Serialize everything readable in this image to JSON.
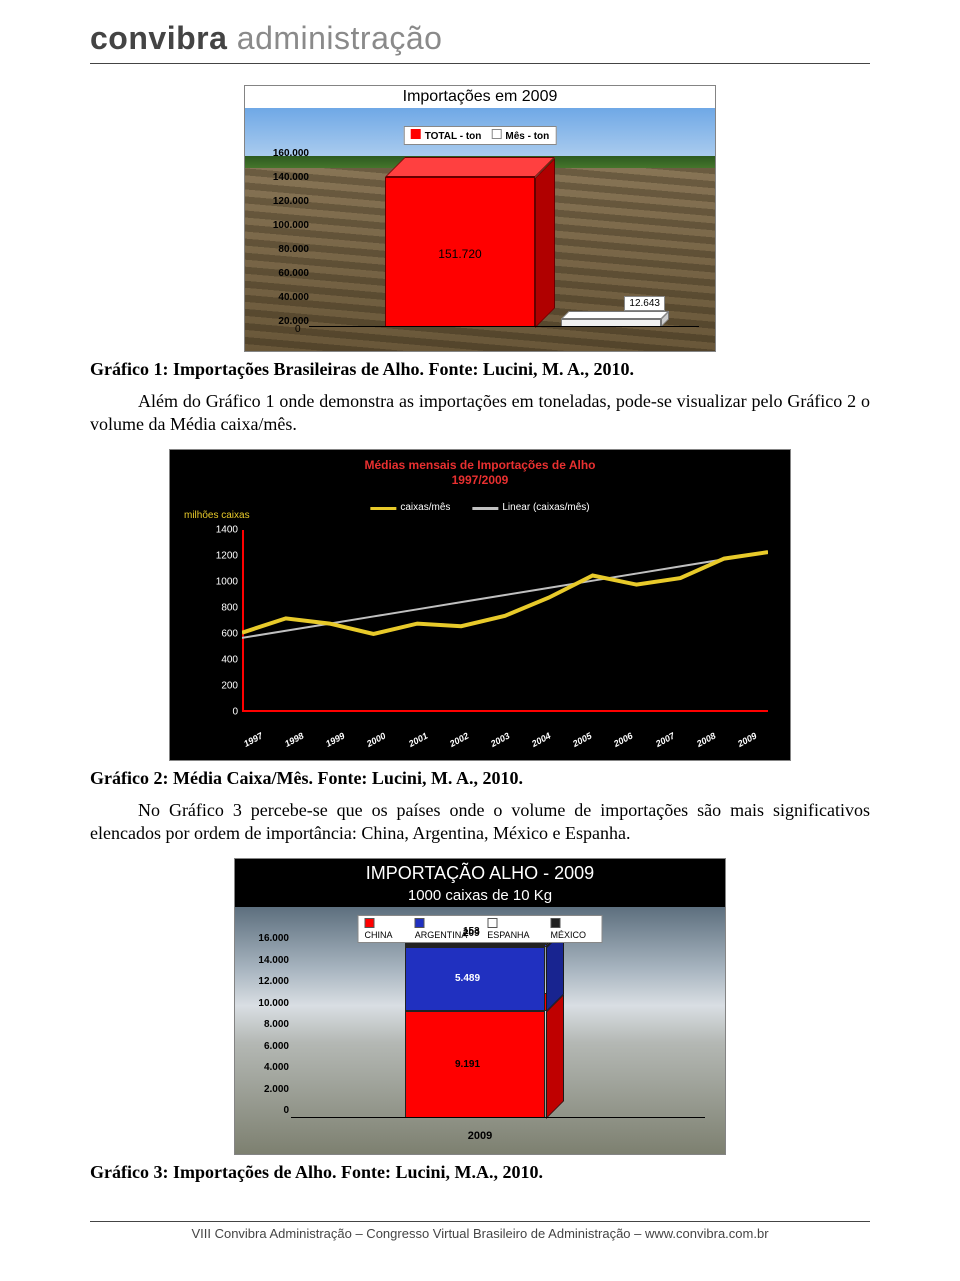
{
  "header": {
    "brand_bold": "convibra",
    "brand_light": "administração"
  },
  "figure1": {
    "title": "Importações em 2009",
    "legend": {
      "total": "TOTAL - ton",
      "mes": "Mês - ton",
      "total_color": "#ff0000",
      "mes_color": "#ffffff"
    },
    "yticks": [
      "160.000",
      "140.000",
      "120.000",
      "100.000",
      "80.000",
      "60.000",
      "40.000",
      "20.000"
    ],
    "zero": "0",
    "bar_value": "151.720",
    "slab_value": "12.643",
    "colors": {
      "bar": "#ff0000",
      "slab": "#f0f0f0"
    }
  },
  "caption1": "Gráfico 1: Importações Brasileiras de Alho. Fonte: Lucini, M. A., 2010.",
  "para1": "Além do Gráfico 1 onde demonstra as importações em toneladas, pode-se visualizar pelo Gráfico 2 o volume da Média caixa/mês.",
  "figure2": {
    "title_line1": "Médias mensais de Importações de Alho",
    "title_line2": "1997/2009",
    "ylabel": "milhões caixas",
    "legend": {
      "series1": "caixas/mês",
      "series2": "Linear (caixas/mês)",
      "c1": "#e8ca2a",
      "c2": "#c0c0c0"
    },
    "yticks": [
      "1400",
      "1200",
      "1000",
      "800",
      "600",
      "400",
      "200",
      "0"
    ],
    "ylim": [
      0,
      1400
    ],
    "xlabels": [
      "1997",
      "1998",
      "1999",
      "2000",
      "2001",
      "2002",
      "2003",
      "2004",
      "2005",
      "2006",
      "2007",
      "2008",
      "2009"
    ],
    "series_caixas": [
      610,
      720,
      680,
      600,
      680,
      660,
      740,
      880,
      1050,
      980,
      1030,
      1180,
      1230
    ],
    "series_linear": [
      570,
      625,
      680,
      735,
      790,
      845,
      900,
      955,
      1010,
      1065,
      1120,
      1175,
      1230
    ],
    "colors": {
      "bg": "#000000",
      "axis": "#ff0000",
      "line": "#e8ca2a",
      "trend": "#c0c0c0",
      "text": "#ffffff",
      "title": "#e83030"
    }
  },
  "caption2": "Gráfico 2: Média Caixa/Mês. Fonte: Lucini, M. A., 2010.",
  "para2": "No Gráfico 3 percebe-se que os países onde o volume de importações são mais significativos elencados por ordem de importância: China, Argentina, México e Espanha.",
  "figure3": {
    "title_line1": "IMPORTAÇÃO ALHO - 2009",
    "title_line2": "1000 caixas de 10 Kg",
    "legend": [
      {
        "label": "CHINA",
        "color": "#ff0000"
      },
      {
        "label": "ARGENTINA",
        "color": "#2030c0"
      },
      {
        "label": "ESPANHA",
        "color": "#ffffff"
      },
      {
        "label": "MÉXICO",
        "color": "#202020"
      }
    ],
    "yticks": [
      "16.000",
      "14.000",
      "12.000",
      "10.000",
      "8.000",
      "6.000",
      "4.000",
      "2.000",
      "0"
    ],
    "ylim": [
      0,
      16000
    ],
    "xlabel": "2009",
    "slices": [
      {
        "label": "153",
        "value": 153,
        "color": "#ffffff"
      },
      {
        "label": "209",
        "value": 209,
        "color": "#202020"
      },
      {
        "label": "5.489",
        "value": 5489,
        "color": "#2030c0"
      },
      {
        "label": "9.191",
        "value": 9191,
        "color": "#ff0000"
      }
    ]
  },
  "caption3": "Gráfico 3: Importações de Alho. Fonte: Lucini, M.A., 2010.",
  "footer": "VIII Convibra Administração – Congresso Virtual Brasileiro de Administração – www.convibra.com.br"
}
